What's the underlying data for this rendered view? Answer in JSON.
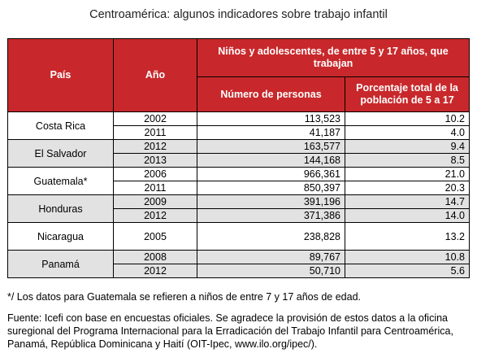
{
  "title": "Centroamérica: algunos indicadores sobre trabajo infantil",
  "headers": {
    "country": "País",
    "year": "Año",
    "group": "Niños y adolescentes, de entre 5 y 17 años, que trabajan",
    "persons": "Número de personas",
    "percent": "Porcentaje total de la población de 5 a 17"
  },
  "chart_data": {
    "type": "table",
    "title": "Centroamérica: algunos indicadores sobre trabajo infantil",
    "columns": [
      "País",
      "Año",
      "Número de personas",
      "Porcentaje total de la población de 5 a 17"
    ],
    "groups": [
      {
        "country": "Costa Rica",
        "rows": [
          {
            "year": "2002",
            "persons": "113,523",
            "percent": "10.2"
          },
          {
            "year": "2011",
            "persons": "41,187",
            "percent": "4.0"
          }
        ]
      },
      {
        "country": "El Salvador",
        "rows": [
          {
            "year": "2012",
            "persons": "163,577",
            "percent": "9.4"
          },
          {
            "year": "2013",
            "persons": "144,168",
            "percent": "8.5"
          }
        ]
      },
      {
        "country": "Guatemala*",
        "rows": [
          {
            "year": "2006",
            "persons": "966,361",
            "percent": "21.0"
          },
          {
            "year": "2011",
            "persons": "850,397",
            "percent": "20.3"
          }
        ]
      },
      {
        "country": "Honduras",
        "rows": [
          {
            "year": "2009",
            "persons": "391,196",
            "percent": "14.7"
          },
          {
            "year": "2012",
            "persons": "371,386",
            "percent": "14.0"
          }
        ]
      },
      {
        "country": "Nicaragua",
        "rows": [
          {
            "year": "2005",
            "persons": "238,828",
            "percent": "13.2"
          }
        ]
      },
      {
        "country": "Panamá",
        "rows": [
          {
            "year": "2008",
            "persons": "89,767",
            "percent": "10.8"
          },
          {
            "year": "2012",
            "persons": "50,710",
            "percent": "5.6"
          }
        ]
      }
    ]
  },
  "notes": {
    "footnote": "*/ Los datos para Guatemala se refieren a niños de entre 7 y 17 años de edad.",
    "source": "Fuente: Icefi con base en encuestas oficiales. Se agradece la provisión de estos datos a la oficina suregional del Programa Internacional para la Erradicación del Trabajo Infantil para Centroamérica, Panamá, República Dominicana y Haití (OIT-Ipec, www.ilo.org/ipec/)."
  }
}
